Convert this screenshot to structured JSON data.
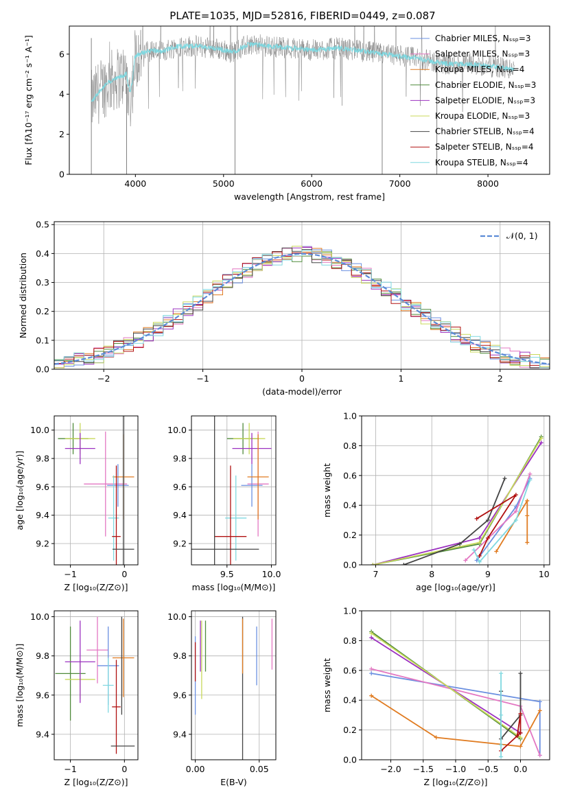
{
  "figure": {
    "title": "PLATE=1035, MJD=52816, FIBERID=0449, z=0.087"
  },
  "chart_data": [
    {
      "id": "spectrum",
      "type": "line",
      "xlabel": "wavelength [Angstrom, rest frame]",
      "ylabel": "Flux [fλ10⁻¹⁷ erg cm⁻² s⁻¹ A⁻¹]",
      "xlim": [
        3250,
        8700
      ],
      "ylim": [
        0,
        7.4
      ],
      "xticks": [
        4000,
        5000,
        6000,
        7000,
        8000
      ],
      "yticks": [
        0,
        2,
        4,
        6
      ],
      "legend_position": "right",
      "legend": [
        {
          "label": "Chabrier MILES, Nₛₛₚ=3",
          "color": "#6a8fe0"
        },
        {
          "label": "Salpeter MILES, Nₛₛₚ=3",
          "color": "#e377c2"
        },
        {
          "label": "Kroupa MILES, Nₛₛₚ=4",
          "color": "#e07b20"
        },
        {
          "label": "Chabrier ELODIE, Nₛₛₚ=3",
          "color": "#4f8a3a"
        },
        {
          "label": "Salpeter ELODIE, Nₛₛₚ=3",
          "color": "#9b30c0"
        },
        {
          "label": "Kroupa ELODIE, Nₛₛₚ=3",
          "color": "#c8d85a"
        },
        {
          "label": "Chabrier STELIB, Nₛₛₚ=4",
          "color": "#444444"
        },
        {
          "label": "Salpeter STELIB, Nₛₛₚ=4",
          "color": "#b01010"
        },
        {
          "label": "Kroupa STELIB, Nₛₛₚ=4",
          "color": "#7fd8e0"
        }
      ],
      "data_color": "#808080",
      "model_color": "#7fd8e0",
      "continuum": {
        "x": [
          3500,
          3600,
          3700,
          3800,
          3900,
          4000,
          4100,
          4200,
          4300,
          4400,
          4500,
          4700,
          4900,
          5100,
          5300,
          5500,
          5800,
          6000,
          6300,
          6500,
          6800,
          7000,
          7200,
          7400,
          7600,
          7800,
          8000,
          8200,
          8300
        ],
        "y": [
          3.6,
          4.2,
          4.6,
          4.8,
          5.0,
          5.9,
          6.1,
          6.2,
          6.1,
          6.3,
          6.4,
          6.4,
          6.3,
          6.1,
          6.5,
          6.4,
          6.3,
          6.2,
          6.3,
          6.2,
          6.0,
          5.9,
          5.8,
          5.6,
          5.5,
          5.5,
          5.4,
          5.3,
          5.2
        ]
      }
    },
    {
      "id": "residuals",
      "type": "step",
      "xlabel": "(data-model)/error",
      "ylabel": "Normed distribution",
      "xlim": [
        -2.5,
        2.5
      ],
      "ylim": [
        0,
        0.51
      ],
      "xticks": [
        -2,
        -1,
        0,
        1,
        2
      ],
      "yticks": [
        0.0,
        0.1,
        0.2,
        0.3,
        0.4,
        0.5
      ],
      "grid": true,
      "legend_position": "top-right",
      "legend": [
        {
          "label": "𝒩(0, 1)",
          "color": "#5b8bd6"
        }
      ],
      "curve": {
        "type": "normal",
        "mu": 0,
        "sigma": 1
      },
      "bin_width": 0.1,
      "series_colors": [
        "#6a8fe0",
        "#e377c2",
        "#e07b20",
        "#4f8a3a",
        "#9b30c0",
        "#c8d85a",
        "#444444",
        "#b01010",
        "#7fd8e0"
      ]
    },
    {
      "id": "age-vs-Z",
      "type": "errorbar",
      "xlabel": "Z [log₁₀(Z/Z⊙)]",
      "ylabel": "age  [log₁₀(age/yr)]",
      "xlim": [
        -1.3,
        0.25
      ],
      "ylim": [
        9.05,
        10.1
      ],
      "xticks": [
        -1,
        0
      ],
      "yticks": [
        9.2,
        9.4,
        9.6,
        9.8,
        10.0
      ],
      "grid": true,
      "points": [
        {
          "x": -0.95,
          "y": 9.94,
          "xerr": 0.28,
          "yerr": 0.11,
          "color": "#4f8a3a"
        },
        {
          "x": -0.82,
          "y": 9.94,
          "xerr": 0.28,
          "yerr": 0.11,
          "color": "#c8d85a"
        },
        {
          "x": -0.82,
          "y": 9.87,
          "xerr": 0.28,
          "yerr": 0.11,
          "color": "#9b30c0"
        },
        {
          "x": -0.35,
          "y": 9.62,
          "xerr": 0.4,
          "yerr": 0.37,
          "color": "#e377c2"
        },
        {
          "x": -0.12,
          "y": 9.61,
          "xerr": 0.2,
          "yerr": 0.15,
          "color": "#6a8fe0"
        },
        {
          "x": -0.02,
          "y": 9.67,
          "xerr": 0.2,
          "yerr": 0.3,
          "color": "#e07b20"
        },
        {
          "x": -0.2,
          "y": 9.38,
          "xerr": 0.1,
          "yerr": 0.3,
          "color": "#7fd8e0"
        },
        {
          "x": -0.15,
          "y": 9.25,
          "xerr": 0.08,
          "yerr": 0.5,
          "color": "#b01010"
        },
        {
          "x": -0.02,
          "y": 9.16,
          "xerr": 0.2,
          "yerr": 0.95,
          "color": "#444444"
        }
      ]
    },
    {
      "id": "age-vs-mass",
      "type": "errorbar",
      "xlabel": "mass [log₁₀(M/M⊙)]",
      "ylabel": "",
      "xlim": [
        9.1,
        10.05
      ],
      "ylim": [
        9.05,
        10.1
      ],
      "xticks": [
        9.5,
        10.0
      ],
      "yticks": [
        9.2,
        9.4,
        9.6,
        9.8,
        10.0
      ],
      "grid": true,
      "points": [
        {
          "x": 9.68,
          "y": 9.94,
          "xerr": 0.18,
          "yerr": 0.11,
          "color": "#4f8a3a"
        },
        {
          "x": 9.75,
          "y": 9.94,
          "xerr": 0.18,
          "yerr": 0.11,
          "color": "#c8d85a"
        },
        {
          "x": 9.78,
          "y": 9.87,
          "xerr": 0.22,
          "yerr": 0.11,
          "color": "#9b30c0"
        },
        {
          "x": 9.85,
          "y": 9.62,
          "xerr": 0.12,
          "yerr": 0.37,
          "color": "#e377c2"
        },
        {
          "x": 9.78,
          "y": 9.61,
          "xerr": 0.12,
          "yerr": 0.15,
          "color": "#6a8fe0"
        },
        {
          "x": 9.85,
          "y": 9.67,
          "xerr": 0.12,
          "yerr": 0.3,
          "color": "#e07b20"
        },
        {
          "x": 9.6,
          "y": 9.38,
          "xerr": 0.12,
          "yerr": 0.3,
          "color": "#7fd8e0"
        },
        {
          "x": 9.54,
          "y": 9.25,
          "xerr": 0.18,
          "yerr": 0.5,
          "color": "#b01010"
        },
        {
          "x": 9.36,
          "y": 9.16,
          "xerr": 0.5,
          "yerr": 0.95,
          "color": "#444444"
        }
      ]
    },
    {
      "id": "massweight-vs-age",
      "type": "line",
      "xlabel": "age  [log₁₀(age/yr)]",
      "ylabel": "mass weight",
      "xlim": [
        6.75,
        10.1
      ],
      "ylim": [
        0,
        1
      ],
      "xticks": [
        7,
        8,
        9,
        10
      ],
      "yticks": [
        0.0,
        0.2,
        0.4,
        0.6,
        0.8,
        1.0
      ],
      "grid": true,
      "series": [
        {
          "color": "#6a8fe0",
          "x": [
            8.8,
            9.5,
            9.75
          ],
          "y": [
            0.03,
            0.39,
            0.58
          ]
        },
        {
          "color": "#e377c2",
          "x": [
            8.6,
            9.5,
            9.75
          ],
          "y": [
            0.03,
            0.36,
            0.61
          ]
        },
        {
          "color": "#e07b20",
          "x": [
            9.15,
            9.7,
            9.7,
            9.7
          ],
          "y": [
            0.09,
            0.43,
            0.33,
            0.15
          ]
        },
        {
          "color": "#4f8a3a",
          "x": [
            6.95,
            8.85,
            9.95
          ],
          "y": [
            0.0,
            0.14,
            0.86
          ]
        },
        {
          "color": "#9b30c0",
          "x": [
            6.95,
            8.85,
            9.95
          ],
          "y": [
            0.0,
            0.18,
            0.82
          ]
        },
        {
          "color": "#c8d85a",
          "x": [
            6.95,
            8.85,
            9.95
          ],
          "y": [
            0.0,
            0.15,
            0.85
          ]
        },
        {
          "color": "#444444",
          "x": [
            7.5,
            8.5,
            9.0,
            9.3
          ],
          "y": [
            0.0,
            0.14,
            0.3,
            0.58
          ]
        },
        {
          "color": "#b01010",
          "x": [
            8.85,
            9.0,
            9.5,
            8.8
          ],
          "y": [
            0.06,
            0.18,
            0.47,
            0.31
          ]
        },
        {
          "color": "#7fd8e0",
          "x": [
            8.75,
            8.85,
            9.5,
            9.75
          ],
          "y": [
            0.1,
            0.02,
            0.3,
            0.57
          ]
        }
      ]
    },
    {
      "id": "mass-vs-Z",
      "type": "errorbar",
      "xlabel": "Z [log₁₀(Z/Z⊙)]",
      "ylabel": "mass [log₁₀(M/M⊙)]",
      "xlim": [
        -1.3,
        0.25
      ],
      "ylim": [
        9.27,
        10.03
      ],
      "xticks": [
        -1,
        0
      ],
      "yticks": [
        9.4,
        9.6,
        9.8,
        10.0
      ],
      "grid": true,
      "points": [
        {
          "x": -1.0,
          "y": 9.71,
          "xerr": 0.28,
          "yerr": 0.24,
          "color": "#4f8a3a"
        },
        {
          "x": -0.82,
          "y": 9.68,
          "xerr": 0.28,
          "yerr": 0.1,
          "color": "#c8d85a"
        },
        {
          "x": -0.82,
          "y": 9.77,
          "xerr": 0.28,
          "yerr": 0.21,
          "color": "#9b30c0"
        },
        {
          "x": -0.5,
          "y": 9.83,
          "xerr": 0.2,
          "yerr": 0.17,
          "color": "#e377c2"
        },
        {
          "x": -0.3,
          "y": 9.75,
          "xerr": 0.2,
          "yerr": 0.2,
          "color": "#6a8fe0"
        },
        {
          "x": -0.02,
          "y": 9.79,
          "xerr": 0.2,
          "yerr": 0.2,
          "color": "#e07b20"
        },
        {
          "x": -0.3,
          "y": 9.65,
          "xerr": 0.1,
          "yerr": 0.14,
          "color": "#7fd8e0"
        },
        {
          "x": -0.15,
          "y": 9.54,
          "xerr": 0.08,
          "yerr": 0.24,
          "color": "#b01010"
        },
        {
          "x": -0.03,
          "y": 9.34,
          "xerr": 0.22,
          "yerr": 0.0,
          "color": "#444444"
        },
        {
          "x": -0.05,
          "y": 9.75,
          "xerr": 0.0,
          "yerr": 0.25,
          "color": "#444444"
        }
      ]
    },
    {
      "id": "mass-vs-ebv",
      "type": "errorbar",
      "xlabel": "E(B-V)",
      "ylabel": "",
      "xlim": [
        -0.003,
        0.063
      ],
      "ylim": [
        9.27,
        10.03
      ],
      "xticks": [
        0.0,
        0.05
      ],
      "xtick_labels": [
        "0.00",
        "0.05"
      ],
      "yticks": [
        9.4,
        9.6,
        9.8,
        10.0
      ],
      "grid": true,
      "points": [
        {
          "x": 0.0,
          "y": 9.7,
          "xerr": 0,
          "yerr": 0.2,
          "color": "#6a8fe0"
        },
        {
          "x": 0.0,
          "y": 9.77,
          "xerr": 0,
          "yerr": 0.1,
          "color": "#b01010"
        },
        {
          "x": 0.004,
          "y": 9.85,
          "xerr": 0,
          "yerr": 0.13,
          "color": "#9b30c0"
        },
        {
          "x": 0.005,
          "y": 9.78,
          "xerr": 0,
          "yerr": 0.2,
          "color": "#c8d85a"
        },
        {
          "x": 0.008,
          "y": 9.85,
          "xerr": 0,
          "yerr": 0.13,
          "color": "#4f8a3a"
        },
        {
          "x": 0.037,
          "y": 9.6,
          "xerr": 0,
          "yerr": 0.4,
          "color": "#444444"
        },
        {
          "x": 0.037,
          "y": 9.85,
          "xerr": 0,
          "yerr": 0.14,
          "color": "#e07b20"
        },
        {
          "x": 0.048,
          "y": 9.8,
          "xerr": 0,
          "yerr": 0.15,
          "color": "#6a8fe0"
        },
        {
          "x": 0.06,
          "y": 9.86,
          "xerr": 0,
          "yerr": 0.13,
          "color": "#e377c2"
        }
      ]
    },
    {
      "id": "massweight-vs-Z",
      "type": "line",
      "xlabel": "Z [log₁₀(Z/Z⊙)]",
      "ylabel": "mass weight",
      "xlim": [
        -2.45,
        0.45
      ],
      "ylim": [
        0,
        1
      ],
      "xticks": [
        -2.0,
        -1.5,
        -1.0,
        -0.5,
        0.0
      ],
      "yticks": [
        0.0,
        0.2,
        0.4,
        0.6,
        0.8,
        1.0
      ],
      "grid": true,
      "series": [
        {
          "color": "#6a8fe0",
          "x": [
            -2.3,
            0.3,
            0.3
          ],
          "y": [
            0.58,
            0.39,
            0.03
          ]
        },
        {
          "color": "#e377c2",
          "x": [
            -2.3,
            0.0,
            0.3
          ],
          "y": [
            0.61,
            0.36,
            0.03
          ]
        },
        {
          "color": "#e07b20",
          "x": [
            -2.3,
            -1.3,
            0.0,
            0.3
          ],
          "y": [
            0.43,
            0.15,
            0.09,
            0.33
          ]
        },
        {
          "color": "#4f8a3a",
          "x": [
            -2.3,
            0.0
          ],
          "y": [
            0.86,
            0.14
          ]
        },
        {
          "color": "#9b30c0",
          "x": [
            -2.3,
            0.0
          ],
          "y": [
            0.82,
            0.18
          ]
        },
        {
          "color": "#c8d85a",
          "x": [
            -2.3,
            0.0
          ],
          "y": [
            0.85,
            0.15
          ]
        },
        {
          "color": "#444444",
          "x": [
            -0.3,
            -0.3,
            0.0,
            0.0
          ],
          "y": [
            0.46,
            0.14,
            0.3,
            0.58
          ]
        },
        {
          "color": "#b01010",
          "x": [
            -0.3,
            0.0,
            0.0,
            -0.05
          ],
          "y": [
            0.06,
            0.18,
            0.31,
            0.16
          ]
        },
        {
          "color": "#7fd8e0",
          "x": [
            -0.3,
            -0.3,
            -0.3,
            -0.3
          ],
          "y": [
            0.58,
            0.3,
            0.1,
            0.02
          ]
        }
      ]
    }
  ]
}
